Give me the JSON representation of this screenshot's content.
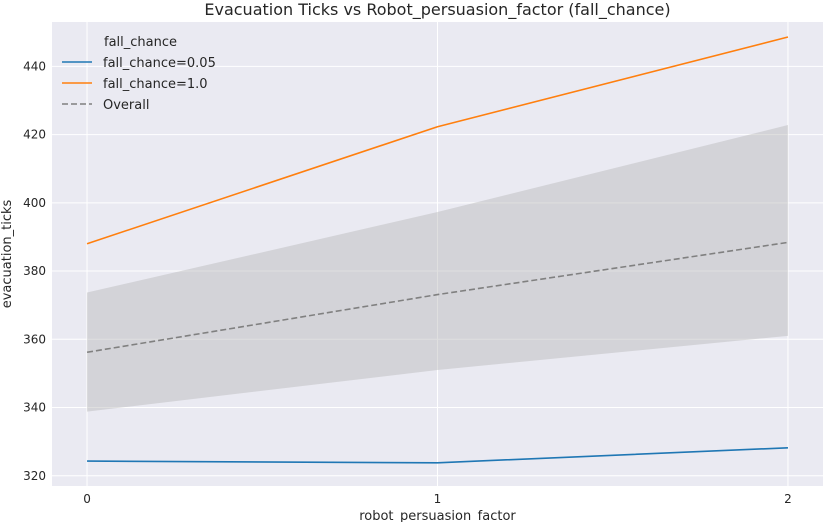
{
  "chart_data": {
    "type": "line",
    "title": "Evacuation Ticks vs Robot_persuasion_factor (fall_chance)",
    "xlabel": "robot_persuasion_factor",
    "ylabel": "evacuation_ticks",
    "x": [
      0,
      1,
      2
    ],
    "x_tick_labels": [
      "0",
      "1",
      "2"
    ],
    "xlim": [
      -0.1,
      2.1
    ],
    "ylim": [
      317,
      453
    ],
    "y_ticks": [
      320,
      340,
      360,
      380,
      400,
      420,
      440
    ],
    "y_tick_labels": [
      "320",
      "340",
      "360",
      "380",
      "400",
      "420",
      "440"
    ],
    "grid": true,
    "legend": {
      "title": "fall_chance",
      "placement": "top-left"
    },
    "series": [
      {
        "name": "fall_chance=0.05",
        "values": [
          324.3,
          323.8,
          328.2
        ],
        "color": "#1f77b4",
        "style": "solid"
      },
      {
        "name": "fall_chance=1.0",
        "values": [
          388.0,
          422.3,
          448.6
        ],
        "color": "#ff7f0e",
        "style": "solid"
      },
      {
        "name": "Overall",
        "values": [
          356.2,
          373.1,
          388.4
        ],
        "color": "#808080",
        "style": "dashed",
        "ci_lower": [
          338.8,
          351.0,
          361.0
        ],
        "ci_upper": [
          373.7,
          397.3,
          422.8
        ]
      }
    ],
    "colors": {
      "background": "#eaeaf2",
      "grid": "#ffffff",
      "ci_band": "#b8b8b8"
    }
  }
}
